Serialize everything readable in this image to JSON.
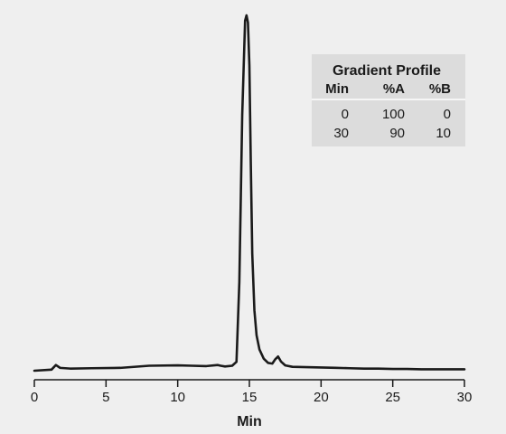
{
  "chart_data": {
    "type": "line",
    "title": "",
    "xlabel": "Min",
    "ylabel": "",
    "xlim": [
      0,
      30
    ],
    "ylim": [
      0,
      1
    ],
    "x_ticks": [
      0,
      5,
      10,
      15,
      20,
      25,
      30
    ],
    "grid": false,
    "series": [
      {
        "x": [
          0,
          1.2,
          1.5,
          1.8,
          2.5,
          4,
          6,
          8,
          10,
          11,
          12,
          12.8,
          13.0,
          13.3,
          13.8,
          14.1,
          14.3,
          14.5,
          14.7,
          14.8,
          14.9,
          15.0,
          15.1,
          15.2,
          15.35,
          15.5,
          15.7,
          16.0,
          16.3,
          16.6,
          16.8,
          17.0,
          17.2,
          17.5,
          18,
          19,
          20,
          21,
          22,
          23,
          24,
          25,
          26,
          27,
          28,
          29,
          30
        ],
        "y": [
          0.0,
          0.003,
          0.016,
          0.008,
          0.006,
          0.007,
          0.008,
          0.014,
          0.015,
          0.014,
          0.013,
          0.016,
          0.014,
          0.012,
          0.014,
          0.025,
          0.25,
          0.72,
          0.985,
          1.0,
          0.98,
          0.86,
          0.58,
          0.33,
          0.17,
          0.1,
          0.06,
          0.034,
          0.022,
          0.02,
          0.032,
          0.04,
          0.026,
          0.015,
          0.011,
          0.01,
          0.009,
          0.008,
          0.007,
          0.006,
          0.006,
          0.005,
          0.005,
          0.004,
          0.004,
          0.004,
          0.004
        ]
      }
    ]
  },
  "gradient_profile": {
    "title": "Gradient Profile",
    "columns": [
      "Min",
      "%A",
      "%B"
    ],
    "rows": [
      [
        "0",
        "100",
        "0"
      ],
      [
        "30",
        "90",
        "10"
      ]
    ]
  },
  "colors": {
    "background": "#efefef",
    "line": "#1a1a1a",
    "table_background": "#dcdcdc"
  }
}
